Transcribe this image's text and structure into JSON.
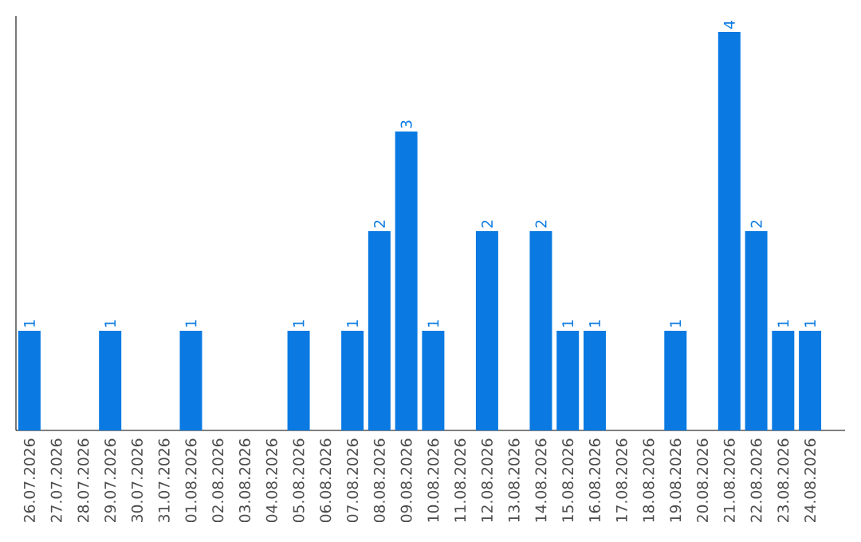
{
  "chart_data": {
    "type": "bar",
    "categories": [
      "26.07.2026",
      "27.07.2026",
      "28.07.2026",
      "29.07.2026",
      "30.07.2026",
      "31.07.2026",
      "01.08.2026",
      "02.08.2026",
      "03.08.2026",
      "04.08.2026",
      "05.08.2026",
      "06.08.2026",
      "07.08.2026",
      "08.08.2026",
      "09.08.2026",
      "10.08.2026",
      "11.08.2026",
      "12.08.2026",
      "13.08.2026",
      "14.08.2026",
      "15.08.2026",
      "16.08.2026",
      "17.08.2026",
      "18.08.2026",
      "19.08.2026",
      "20.08.2026",
      "21.08.2026",
      "22.08.2026",
      "23.08.2026",
      "24.08.2026"
    ],
    "values": [
      1,
      0,
      0,
      1,
      0,
      0,
      1,
      0,
      0,
      0,
      1,
      0,
      1,
      2,
      3,
      1,
      0,
      2,
      0,
      2,
      1,
      1,
      0,
      0,
      1,
      0,
      4,
      2,
      1,
      1
    ],
    "value_labels": [
      "1",
      null,
      null,
      "1",
      null,
      null,
      "1",
      null,
      null,
      null,
      "1",
      null,
      "1",
      "2",
      "3",
      "1",
      null,
      "2",
      null,
      "2",
      "1",
      "1",
      null,
      null,
      "1",
      null,
      "4",
      "2",
      "1",
      "1"
    ],
    "color": "#0a7ae2",
    "tick_labels": "x",
    "grid": false
  }
}
